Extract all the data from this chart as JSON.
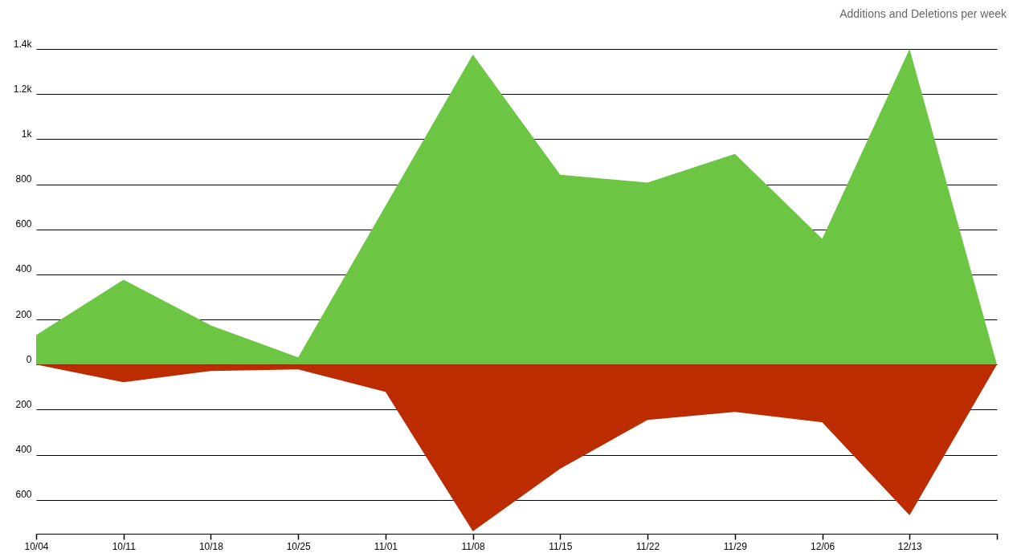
{
  "chart_data": {
    "type": "area",
    "title": "Additions and Deletions per week",
    "categories": [
      "10/04",
      "10/11",
      "10/18",
      "10/25",
      "11/01",
      "11/08",
      "11/15",
      "11/22",
      "11/29",
      "12/06",
      "12/13",
      null
    ],
    "series": [
      {
        "color": "#6cc644",
        "values": [
          131,
          377,
          174,
          32,
          704,
          1375,
          842,
          807,
          935,
          558,
          1400,
          0
        ]
      },
      {
        "color": "#bd2c00",
        "values": [
          0,
          -78,
          -28,
          -21,
          -121,
          -739,
          -462,
          -245,
          -210,
          -256,
          -668,
          0
        ]
      }
    ],
    "ylim": [
      -750,
      1400
    ],
    "yticks": [
      {
        "value": -600,
        "label": "600"
      },
      {
        "value": -400,
        "label": "400"
      },
      {
        "value": -200,
        "label": "200"
      },
      0,
      200,
      400,
      600,
      800,
      {
        "value": 1000,
        "label": "1k"
      },
      {
        "value": 1200,
        "label": "1.2k"
      },
      {
        "value": 1400,
        "label": "1.4k"
      }
    ],
    "grid": "y"
  }
}
